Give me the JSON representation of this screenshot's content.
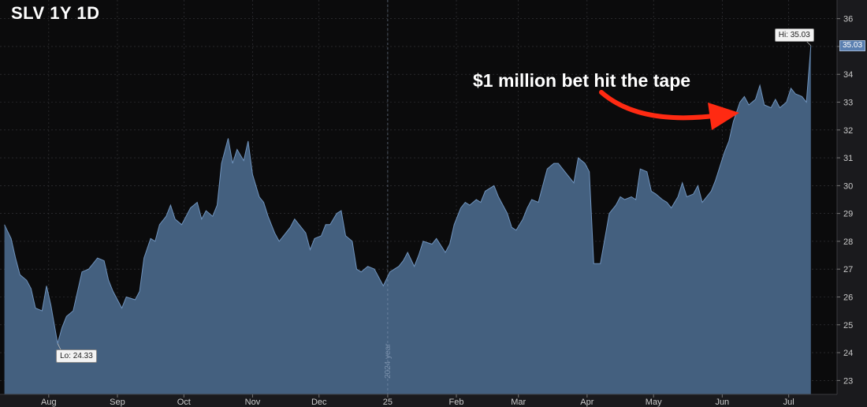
{
  "title": "SLV 1Y 1D",
  "annotation": {
    "text": "$1 million bet hit the tape",
    "arrow_color": "#ff2a12"
  },
  "callouts": {
    "high": "Hi: 35.03",
    "low": "Lo: 24.33",
    "last_price": "35.03"
  },
  "year_divider_label": "2024 year",
  "colors": {
    "background": "#0b0b0c",
    "area_fill": "#44607f",
    "area_line": "#6f93bd",
    "axis_panel": "#1a1a1d",
    "grid": "#3a3a3e"
  },
  "chart_data": {
    "type": "area",
    "title": "SLV 1Y 1D",
    "xlabel": "",
    "ylabel": "",
    "ylim": [
      22.5,
      36.5
    ],
    "grid": true,
    "yticks": [
      23,
      24,
      25,
      26,
      27,
      28,
      29,
      30,
      31,
      32,
      33,
      34,
      35,
      36
    ],
    "x_ticks": [
      {
        "label": "Aug",
        "date": "2024-08-01"
      },
      {
        "label": "Sep",
        "date": "2024-09-01"
      },
      {
        "label": "Oct",
        "date": "2024-10-01"
      },
      {
        "label": "Nov",
        "date": "2024-11-01"
      },
      {
        "label": "Dec",
        "date": "2024-12-01"
      },
      {
        "label": "25",
        "date": "2025-01-01"
      },
      {
        "label": "Feb",
        "date": "2025-02-01"
      },
      {
        "label": "Mar",
        "date": "2025-03-01"
      },
      {
        "label": "Apr",
        "date": "2025-04-01"
      },
      {
        "label": "May",
        "date": "2025-05-01"
      },
      {
        "label": "Jun",
        "date": "2025-06-01"
      },
      {
        "label": "Jul",
        "date": "2025-07-01"
      }
    ],
    "year_divider_date": "2025-01-01",
    "high": {
      "date": "2025-07-11",
      "value": 35.03
    },
    "low": {
      "date": "2024-08-05",
      "value": 24.33
    },
    "last": {
      "date": "2025-07-11",
      "value": 35.03
    },
    "series": [
      {
        "values": [
          [
            "2024-07-12",
            28.6
          ],
          [
            "2024-07-15",
            28.1
          ],
          [
            "2024-07-17",
            27.4
          ],
          [
            "2024-07-19",
            26.8
          ],
          [
            "2024-07-22",
            26.6
          ],
          [
            "2024-07-24",
            26.3
          ],
          [
            "2024-07-26",
            25.6
          ],
          [
            "2024-07-29",
            25.5
          ],
          [
            "2024-07-31",
            26.4
          ],
          [
            "2024-08-02",
            25.7
          ],
          [
            "2024-08-05",
            24.33
          ],
          [
            "2024-08-07",
            24.9
          ],
          [
            "2024-08-09",
            25.3
          ],
          [
            "2024-08-12",
            25.5
          ],
          [
            "2024-08-14",
            26.2
          ],
          [
            "2024-08-16",
            26.9
          ],
          [
            "2024-08-19",
            27.0
          ],
          [
            "2024-08-21",
            27.2
          ],
          [
            "2024-08-23",
            27.4
          ],
          [
            "2024-08-26",
            27.3
          ],
          [
            "2024-08-28",
            26.6
          ],
          [
            "2024-08-30",
            26.2
          ],
          [
            "2024-09-03",
            25.6
          ],
          [
            "2024-09-05",
            26.0
          ],
          [
            "2024-09-09",
            25.9
          ],
          [
            "2024-09-11",
            26.2
          ],
          [
            "2024-09-13",
            27.4
          ],
          [
            "2024-09-16",
            28.1
          ],
          [
            "2024-09-18",
            28.0
          ],
          [
            "2024-09-20",
            28.6
          ],
          [
            "2024-09-23",
            28.9
          ],
          [
            "2024-09-25",
            29.3
          ],
          [
            "2024-09-27",
            28.8
          ],
          [
            "2024-09-30",
            28.6
          ],
          [
            "2024-10-02",
            28.9
          ],
          [
            "2024-10-04",
            29.2
          ],
          [
            "2024-10-07",
            29.4
          ],
          [
            "2024-10-09",
            28.8
          ],
          [
            "2024-10-11",
            29.1
          ],
          [
            "2024-10-14",
            28.9
          ],
          [
            "2024-10-16",
            29.3
          ],
          [
            "2024-10-18",
            30.8
          ],
          [
            "2024-10-21",
            31.7
          ],
          [
            "2024-10-23",
            30.8
          ],
          [
            "2024-10-25",
            31.3
          ],
          [
            "2024-10-28",
            30.9
          ],
          [
            "2024-10-30",
            31.6
          ],
          [
            "2024-11-01",
            30.4
          ],
          [
            "2024-11-04",
            29.6
          ],
          [
            "2024-11-06",
            29.4
          ],
          [
            "2024-11-08",
            28.9
          ],
          [
            "2024-11-11",
            28.3
          ],
          [
            "2024-11-13",
            28.0
          ],
          [
            "2024-11-15",
            28.2
          ],
          [
            "2024-11-18",
            28.5
          ],
          [
            "2024-11-20",
            28.8
          ],
          [
            "2024-11-22",
            28.6
          ],
          [
            "2024-11-25",
            28.3
          ],
          [
            "2024-11-27",
            27.7
          ],
          [
            "2024-11-29",
            28.1
          ],
          [
            "2024-12-02",
            28.2
          ],
          [
            "2024-12-04",
            28.6
          ],
          [
            "2024-12-06",
            28.6
          ],
          [
            "2024-12-09",
            29.0
          ],
          [
            "2024-12-11",
            29.1
          ],
          [
            "2024-12-13",
            28.2
          ],
          [
            "2024-12-16",
            28.0
          ],
          [
            "2024-12-18",
            27.0
          ],
          [
            "2024-12-20",
            26.9
          ],
          [
            "2024-12-23",
            27.1
          ],
          [
            "2024-12-26",
            27.0
          ],
          [
            "2024-12-30",
            26.4
          ],
          [
            "2025-01-02",
            26.9
          ],
          [
            "2025-01-06",
            27.1
          ],
          [
            "2025-01-08",
            27.3
          ],
          [
            "2025-01-10",
            27.6
          ],
          [
            "2025-01-13",
            27.1
          ],
          [
            "2025-01-15",
            27.5
          ],
          [
            "2025-01-17",
            28.0
          ],
          [
            "2025-01-21",
            27.9
          ],
          [
            "2025-01-23",
            28.1
          ],
          [
            "2025-01-27",
            27.6
          ],
          [
            "2025-01-29",
            27.9
          ],
          [
            "2025-01-31",
            28.6
          ],
          [
            "2025-02-03",
            29.2
          ],
          [
            "2025-02-05",
            29.4
          ],
          [
            "2025-02-07",
            29.3
          ],
          [
            "2025-02-10",
            29.5
          ],
          [
            "2025-02-12",
            29.4
          ],
          [
            "2025-02-14",
            29.8
          ],
          [
            "2025-02-18",
            30.0
          ],
          [
            "2025-02-20",
            29.6
          ],
          [
            "2025-02-24",
            29.0
          ],
          [
            "2025-02-26",
            28.5
          ],
          [
            "2025-02-28",
            28.4
          ],
          [
            "2025-03-03",
            28.8
          ],
          [
            "2025-03-05",
            29.2
          ],
          [
            "2025-03-07",
            29.5
          ],
          [
            "2025-03-10",
            29.4
          ],
          [
            "2025-03-12",
            30.0
          ],
          [
            "2025-03-14",
            30.6
          ],
          [
            "2025-03-17",
            30.8
          ],
          [
            "2025-03-19",
            30.8
          ],
          [
            "2025-03-21",
            30.6
          ],
          [
            "2025-03-24",
            30.3
          ],
          [
            "2025-03-26",
            30.1
          ],
          [
            "2025-03-28",
            31.0
          ],
          [
            "2025-03-31",
            30.8
          ],
          [
            "2025-04-02",
            30.5
          ],
          [
            "2025-04-04",
            27.2
          ],
          [
            "2025-04-07",
            27.2
          ],
          [
            "2025-04-09",
            28.1
          ],
          [
            "2025-04-11",
            29.0
          ],
          [
            "2025-04-14",
            29.3
          ],
          [
            "2025-04-16",
            29.6
          ],
          [
            "2025-04-18",
            29.5
          ],
          [
            "2025-04-21",
            29.6
          ],
          [
            "2025-04-23",
            29.5
          ],
          [
            "2025-04-25",
            30.6
          ],
          [
            "2025-04-28",
            30.5
          ],
          [
            "2025-04-30",
            29.8
          ],
          [
            "2025-05-02",
            29.7
          ],
          [
            "2025-05-05",
            29.5
          ],
          [
            "2025-05-07",
            29.4
          ],
          [
            "2025-05-09",
            29.2
          ],
          [
            "2025-05-12",
            29.6
          ],
          [
            "2025-05-14",
            30.1
          ],
          [
            "2025-05-16",
            29.6
          ],
          [
            "2025-05-19",
            29.7
          ],
          [
            "2025-05-21",
            30.0
          ],
          [
            "2025-05-23",
            29.4
          ],
          [
            "2025-05-27",
            29.8
          ],
          [
            "2025-05-29",
            30.2
          ],
          [
            "2025-06-02",
            31.2
          ],
          [
            "2025-06-04",
            31.6
          ],
          [
            "2025-06-06",
            32.3
          ],
          [
            "2025-06-09",
            33.0
          ],
          [
            "2025-06-11",
            33.2
          ],
          [
            "2025-06-13",
            32.9
          ],
          [
            "2025-06-16",
            33.1
          ],
          [
            "2025-06-18",
            33.6
          ],
          [
            "2025-06-20",
            32.9
          ],
          [
            "2025-06-23",
            32.8
          ],
          [
            "2025-06-25",
            33.1
          ],
          [
            "2025-06-27",
            32.8
          ],
          [
            "2025-06-30",
            33.0
          ],
          [
            "2025-07-02",
            33.5
          ],
          [
            "2025-07-04",
            33.3
          ],
          [
            "2025-07-07",
            33.2
          ],
          [
            "2025-07-09",
            33.0
          ],
          [
            "2025-07-11",
            35.03
          ]
        ]
      }
    ]
  }
}
